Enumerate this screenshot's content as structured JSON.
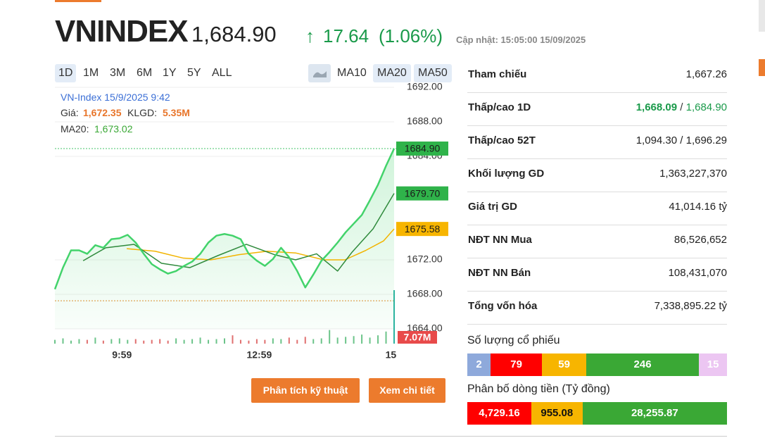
{
  "header": {
    "symbol": "VNINDEX",
    "price": "1,684.90",
    "arrow": "↑",
    "change": "17.64",
    "change_pct": "(1.06%)",
    "updated": "Cập nhật: 15:05:00 15/09/2025"
  },
  "ranges": [
    "1D",
    "1M",
    "3M",
    "6M",
    "1Y",
    "5Y",
    "ALL"
  ],
  "indicators": [
    "MA10",
    "MA20",
    "MA50"
  ],
  "chart": {
    "type": "line",
    "tooltip": {
      "title": "VN-Index 15/9/2025 9:42",
      "price_label": "Giá:",
      "price": "1,672.35",
      "volume_label": "KLGD:",
      "volume": "5.35M",
      "ma20_label": "MA20:",
      "ma20": "1,673.02"
    },
    "xlim": [
      0,
      42
    ],
    "ylim": [
      1664,
      1692
    ],
    "yticks": [
      {
        "value": 1692,
        "label": "1692.00"
      },
      {
        "value": 1688,
        "label": "1688.00"
      },
      {
        "value": 1684,
        "label": "1684.00"
      },
      {
        "value": 1672,
        "label": "1672.00"
      },
      {
        "value": 1668,
        "label": "1668.00"
      },
      {
        "value": 1664,
        "label": "1664.00"
      }
    ],
    "xticks": [
      {
        "value": 8.3,
        "label": "9:59"
      },
      {
        "value": 25.3,
        "label": "12:59"
      },
      {
        "value": 41.6,
        "label": "15"
      }
    ],
    "series": [
      {
        "name": "Price",
        "color": "#43d36b",
        "x": [
          0,
          1,
          2,
          3,
          4,
          5,
          6,
          7,
          8,
          9,
          10,
          11,
          12,
          13,
          14,
          15,
          16,
          17,
          18,
          19,
          20,
          21,
          22,
          23,
          24,
          25,
          26,
          27,
          28,
          29,
          30,
          31,
          32,
          33,
          34,
          35,
          36,
          37,
          38,
          39,
          40,
          41,
          42
        ],
        "values": [
          1668.6,
          1671.1,
          1673.1,
          1673.1,
          1672.7,
          1673.7,
          1673.4,
          1674.4,
          1674.5,
          1674.9,
          1674.0,
          1672.7,
          1671.5,
          1670.9,
          1670.4,
          1670.7,
          1671.3,
          1671.8,
          1672.7,
          1674.0,
          1674.8,
          1675.0,
          1674.8,
          1674.4,
          1672.7,
          1671.9,
          1671.3,
          1672.1,
          1673.4,
          1672.3,
          1670.7,
          1668.8,
          1670.3,
          1671.9,
          1672.9,
          1674.0,
          1675.2,
          1676.2,
          1677.2,
          1678.9,
          1680.7,
          1682.9,
          1684.9
        ]
      },
      {
        "name": "MA20",
        "color": "#2f8a3c",
        "x": [
          3.5,
          6.3,
          9.8,
          13.2,
          16.7,
          20.2,
          23.7,
          27.2,
          29.8,
          32.4,
          35.0,
          36.8,
          39.4,
          42
        ],
        "values": [
          1671.9,
          1673.4,
          1673.8,
          1671.6,
          1671.1,
          1672.5,
          1673.8,
          1672.6,
          1672.0,
          1672.7,
          1670.7,
          1672.9,
          1675.6,
          1679.7
        ]
      },
      {
        "name": "MA50",
        "color": "#f2b400",
        "x": [
          8.9,
          12.4,
          15.9,
          19.3,
          22.8,
          26.3,
          29.8,
          33.3,
          35.9,
          38.5,
          40.7,
          42
        ],
        "values": [
          1673.3,
          1673.0,
          1672.2,
          1672.0,
          1672.6,
          1673.0,
          1672.8,
          1672.0,
          1672.0,
          1673.1,
          1674.2,
          1675.58
        ]
      }
    ],
    "volumes": [
      0.5,
      0.7,
      0.4,
      0.6,
      0.5,
      0.8,
      0.4,
      0.6,
      0.7,
      0.5,
      0.6,
      0.4,
      0.5,
      0.6,
      0.4,
      0.7,
      0.5,
      0.6,
      0.8,
      0.5,
      0.6,
      0.7,
      1.1,
      0.5,
      0.4,
      0.6,
      0.5,
      0.7,
      0.6,
      0.8,
      0.5,
      0.9,
      0.6,
      0.7,
      1.8,
      0.8,
      0.9,
      1.0,
      1.2,
      0.8,
      1.1,
      1.6,
      7.07
    ],
    "flags": [
      {
        "value": 1684.9,
        "label": "1684.90",
        "color": "#2fb34a"
      },
      {
        "value": 1679.7,
        "label": "1679.70",
        "color": "#2fb34a"
      },
      {
        "value": 1675.58,
        "label": "1675.58",
        "color": "#f7b500"
      }
    ],
    "volume_flag": {
      "label": "7.07M",
      "color": "#e84a4a"
    }
  },
  "buttons": [
    "Phân tích kỹ thuật",
    "Xem chi tiết"
  ],
  "stats": [
    {
      "label": "Tham chiếu",
      "value": "1,667.26"
    },
    {
      "label": "Thấp/cao 1D",
      "low": "1,668.09",
      "separator": "/",
      "high": "1,684.90"
    },
    {
      "label": "Thấp/cao 52T",
      "value": "1,094.30 / 1,696.29"
    },
    {
      "label": "Khối lượng GD",
      "value": "1,363,227,370"
    },
    {
      "label": "Giá trị GD",
      "value": "41,014.16 tỷ"
    },
    {
      "label": "NĐT NN Mua",
      "value": "86,526,652"
    },
    {
      "label": "NĐT NN Bán",
      "value": "108,431,070"
    },
    {
      "label": "Tổng vốn hóa",
      "value": "7,338,895.22 tỷ"
    }
  ],
  "breadth": {
    "title": "Số lượng cổ phiếu",
    "segments": [
      {
        "value": 2,
        "color": "#8ea9db"
      },
      {
        "value": 79,
        "color": "#ff0000"
      },
      {
        "value": 59,
        "color": "#f7b500"
      },
      {
        "value": 246,
        "color": "#3aa835"
      },
      {
        "value": 15,
        "color": "#ecc6f2"
      }
    ]
  },
  "flow": {
    "title": "Phân bố dòng tiền (Tỷ đồng)",
    "segments": [
      {
        "value": "4,729.16",
        "color": "#ff0000"
      },
      {
        "value": "955.08",
        "color": "#f7b500"
      },
      {
        "value": "28,255.87",
        "color": "#3aa835"
      }
    ]
  }
}
